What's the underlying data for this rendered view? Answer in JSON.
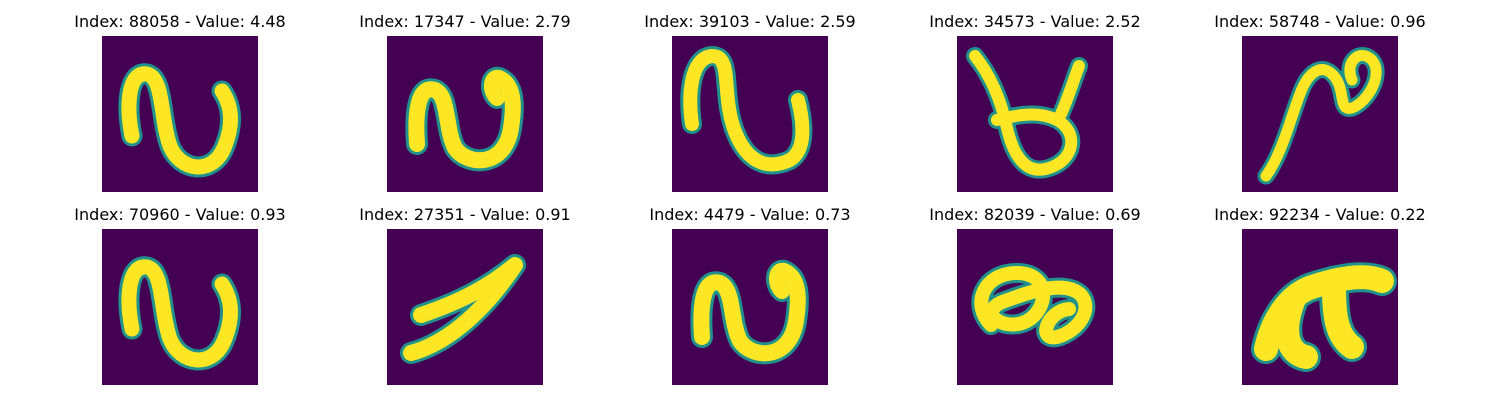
{
  "colors": {
    "background": "#440154",
    "glyph_edge": "#21918c",
    "glyph_fill": "#fde725"
  },
  "panels": [
    {
      "title": "Index: 88058 - Value: 4.48",
      "glyph": "squiggle-n-wide"
    },
    {
      "title": "Index: 17347 - Value: 2.79",
      "glyph": "squiggle-n-tall"
    },
    {
      "title": "Index: 39103 - Value: 2.59",
      "glyph": "squiggle-n-hooked"
    },
    {
      "title": "Index: 34573 - Value: 2.52",
      "glyph": "loop-cup"
    },
    {
      "title": "Index: 58748 - Value: 0.96",
      "glyph": "slanted-curl"
    },
    {
      "title": "Index: 70960 - Value: 0.93",
      "glyph": "squiggle-n-wide"
    },
    {
      "title": "Index: 27351 - Value: 0.91",
      "glyph": "diagonal-hook"
    },
    {
      "title": "Index: 4479 - Value: 0.73",
      "glyph": "squiggle-n-tall"
    },
    {
      "title": "Index: 82039 - Value: 0.69",
      "glyph": "double-loop"
    },
    {
      "title": "Index: 92234 - Value: 0.22",
      "glyph": "blob-arch"
    }
  ]
}
